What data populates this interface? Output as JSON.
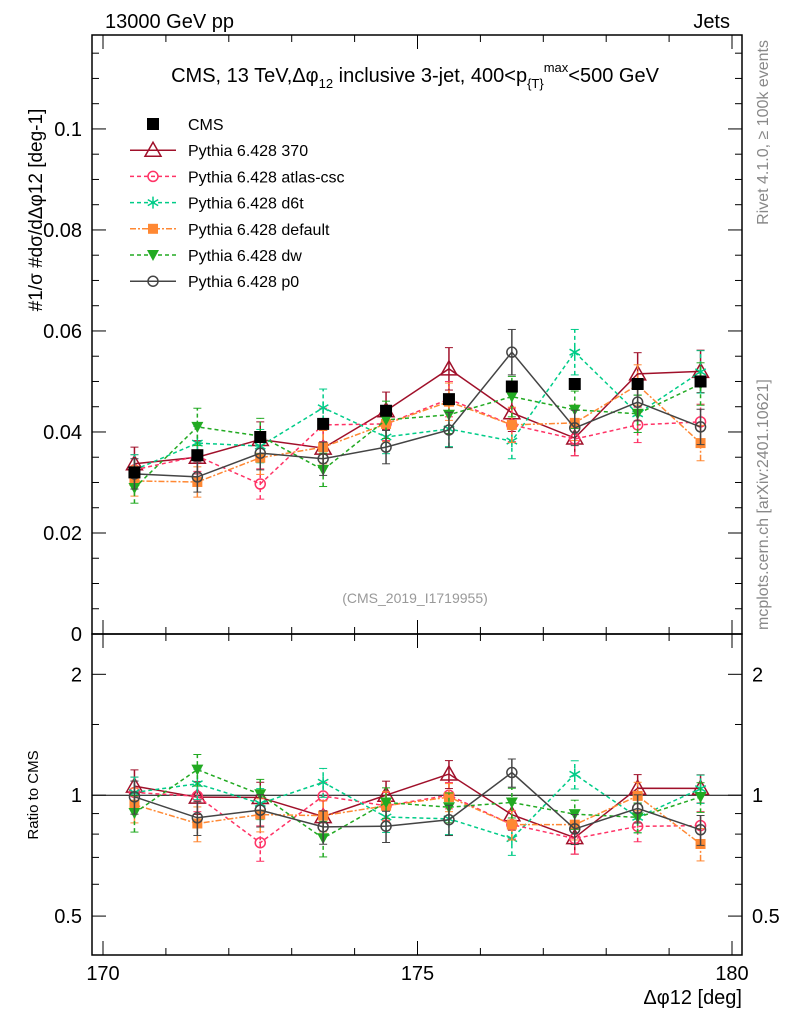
{
  "header": {
    "left": "13000 GeV pp",
    "right": "Jets"
  },
  "side": {
    "rivet": "Rivet 4.1.0, ≥ 100k events",
    "mcplots": "mcplots.cern.ch [arXiv:2401.10621]"
  },
  "chart_data": {
    "type": "line",
    "title": "CMS, 13 TeV,Δφ12 inclusive 3-jet, 400<p{T}max<500 GeV",
    "title_parts": {
      "a": "CMS, 13 TeV,Δφ",
      "b": "12",
      "c": " inclusive 3-jet, 400<p",
      "d": "{T}",
      "e": "max",
      "f": "<500 GeV"
    },
    "watermark": "(CMS_2019_I1719955)",
    "ylabel": "#1/σ #dσ/dΔφ12 [deg-1]",
    "ratio_ylabel": "Ratio to CMS",
    "xlabel": "Δφ12 [deg]",
    "xlabel_parts": {
      "a": "Δφ",
      "b": "12",
      "c": " [deg]"
    },
    "xlim": [
      170,
      180
    ],
    "ylim": [
      0,
      0.1186
    ],
    "ratio_ylim": [
      0.4,
      2.52
    ],
    "xticks": [
      "170",
      "175",
      "180"
    ],
    "yticks": [
      "0",
      "0.02",
      "0.04",
      "0.06",
      "0.08",
      "0.1"
    ],
    "ratio_yticks": [
      "0.5",
      "1",
      "2"
    ],
    "legend_position": "top-left",
    "x": [
      170.5,
      171.5,
      172.5,
      173.5,
      174.5,
      175.5,
      176.5,
      177.5,
      178.5,
      179.5
    ],
    "series": [
      {
        "name": "CMS",
        "color": "#000000",
        "marker": "square",
        "dash": "none",
        "values": [
          0.032,
          0.0354,
          0.039,
          0.0416,
          0.0442,
          0.0465,
          0.049,
          0.0495,
          0.0495,
          0.05
        ],
        "errors": [
          0.0008,
          0.0008,
          0.0008,
          0.0008,
          0.0008,
          0.0008,
          0.0008,
          0.0008,
          0.0008,
          0.0008
        ]
      },
      {
        "name": "Pythia 6.428 370",
        "color": "#a0102a",
        "marker": "triangle-open",
        "dash": "none",
        "values": [
          0.0337,
          0.035,
          0.0385,
          0.0368,
          0.0442,
          0.0525,
          0.0438,
          0.0388,
          0.0515,
          0.052
        ],
        "errors": [
          0.0033,
          0.0033,
          0.0035,
          0.0035,
          0.0037,
          0.0042,
          0.0037,
          0.0035,
          0.0042,
          0.0042
        ]
      },
      {
        "name": "Pythia 6.428 atlas-csc",
        "color": "#ff3366",
        "marker": "circle-open",
        "dash": "4,3",
        "values": [
          0.0325,
          0.0352,
          0.0297,
          0.0414,
          0.0416,
          0.0465,
          0.0414,
          0.0386,
          0.0414,
          0.042
        ],
        "errors": [
          0.003,
          0.003,
          0.003,
          0.0033,
          0.0033,
          0.0035,
          0.0033,
          0.0033,
          0.0035,
          0.0035
        ]
      },
      {
        "name": "Pythia 6.428 d6t",
        "color": "#00cc88",
        "marker": "star",
        "dash": "4,3",
        "values": [
          0.0325,
          0.0378,
          0.0372,
          0.0448,
          0.039,
          0.0406,
          0.0382,
          0.0558,
          0.0436,
          0.0519
        ],
        "errors": [
          0.003,
          0.0033,
          0.0033,
          0.0037,
          0.0033,
          0.0035,
          0.0035,
          0.0045,
          0.0037,
          0.0042
        ]
      },
      {
        "name": "Pythia 6.428 default",
        "color": "#ff8833",
        "marker": "square-filled",
        "dash": "6,2,2,2",
        "values": [
          0.0303,
          0.0301,
          0.0349,
          0.037,
          0.0416,
          0.046,
          0.0414,
          0.0418,
          0.0493,
          0.0378
        ],
        "errors": [
          0.003,
          0.003,
          0.0033,
          0.0033,
          0.0035,
          0.0037,
          0.0035,
          0.0035,
          0.004,
          0.0035
        ]
      },
      {
        "name": "Pythia 6.428 dw",
        "color": "#22aa22",
        "marker": "triangle-down",
        "dash": "4,3",
        "values": [
          0.0289,
          0.041,
          0.0392,
          0.0325,
          0.0424,
          0.0434,
          0.047,
          0.0444,
          0.0436,
          0.0495
        ],
        "errors": [
          0.003,
          0.0037,
          0.0035,
          0.0033,
          0.0037,
          0.0037,
          0.004,
          0.0037,
          0.0037,
          0.0042
        ]
      },
      {
        "name": "Pythia 6.428 p0",
        "color": "#444444",
        "marker": "circle-open",
        "dash": "none",
        "values": [
          0.0317,
          0.0311,
          0.0358,
          0.0347,
          0.037,
          0.0404,
          0.0558,
          0.0408,
          0.0459,
          0.041
        ],
        "errors": [
          0.003,
          0.003,
          0.0033,
          0.0033,
          0.0033,
          0.0035,
          0.0045,
          0.0035,
          0.0037,
          0.0035
        ]
      }
    ]
  }
}
